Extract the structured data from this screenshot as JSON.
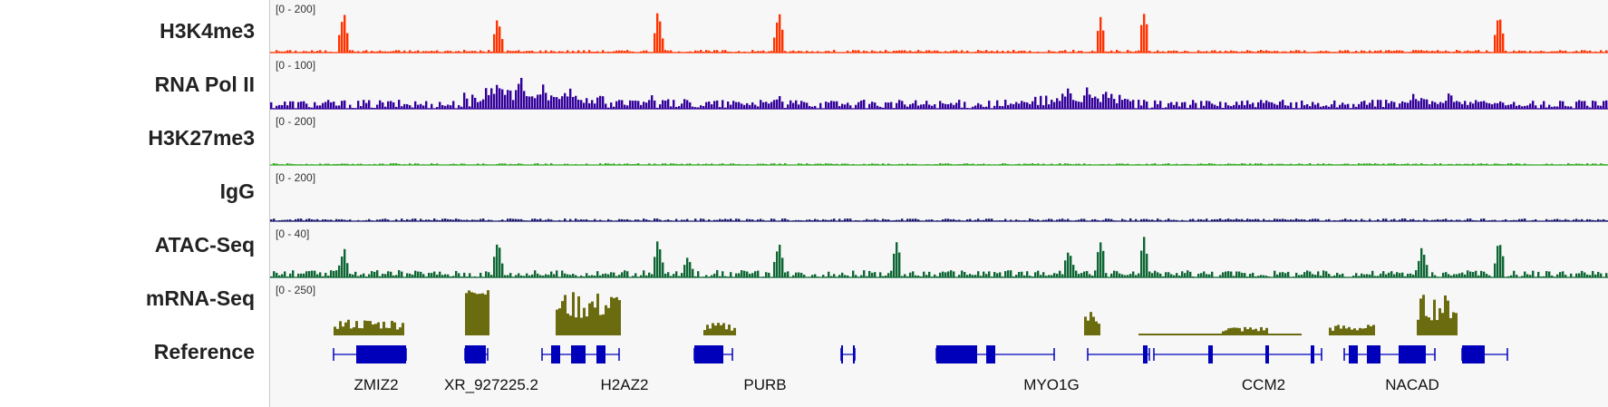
{
  "tracks": [
    {
      "name": "H3K4me3",
      "range": "[0 - 200]",
      "color": "#ff3300"
    },
    {
      "name": "RNA Pol II",
      "range": "[0 - 100]",
      "color": "#330099"
    },
    {
      "name": "H3K27me3",
      "range": "[0 - 200]",
      "color": "#33aa22"
    },
    {
      "name": "IgG",
      "range": "[0 - 200]",
      "color": "#1a1a6e"
    },
    {
      "name": "ATAC-Seq",
      "range": "[0 - 40]",
      "color": "#0d6633"
    },
    {
      "name": "mRNA-Seq",
      "range": "[0 - 250]",
      "color": "#6b6b0f"
    }
  ],
  "reference": {
    "name": "Reference",
    "color": "#0000bb",
    "genes": [
      "ZMIZ2",
      "XR_927225.2",
      "H2AZ2",
      "PURB",
      "MYO1G",
      "CCM2",
      "NACAD"
    ]
  }
}
